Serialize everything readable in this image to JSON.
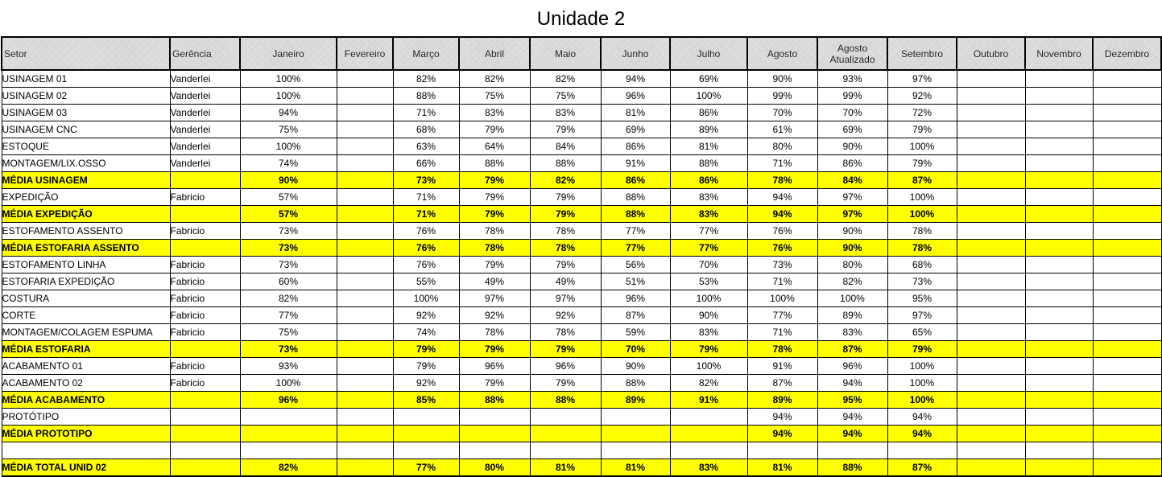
{
  "title": "Unidade 2",
  "headers": [
    "Setor",
    "Gerência",
    "Janeiro",
    "Fevereiro",
    "Março",
    "Abril",
    "Maio",
    "Junho",
    "Julho",
    "Agosto",
    "Agosto Atualizado",
    "Setembro",
    "Outubro",
    "Novembro",
    "Dezembro"
  ],
  "rows": [
    {
      "type": "row",
      "setor": "USINAGEM 01",
      "gerencia": "Vanderlei",
      "values": [
        "100%",
        "",
        "82%",
        "82%",
        "82%",
        "94%",
        "69%",
        "90%",
        "93%",
        "97%",
        "",
        "",
        ""
      ]
    },
    {
      "type": "row",
      "setor": "USINAGEM 02",
      "gerencia": "Vanderlei",
      "values": [
        "100%",
        "",
        "88%",
        "75%",
        "75%",
        "96%",
        "100%",
        "99%",
        "99%",
        "92%",
        "",
        "",
        ""
      ]
    },
    {
      "type": "row",
      "setor": "USINAGEM 03",
      "gerencia": "Vanderlei",
      "values": [
        "94%",
        "",
        "71%",
        "83%",
        "83%",
        "81%",
        "86%",
        "70%",
        "70%",
        "72%",
        "",
        "",
        ""
      ]
    },
    {
      "type": "row",
      "setor": "USINAGEM CNC",
      "gerencia": "Vanderlei",
      "values": [
        "75%",
        "",
        "68%",
        "79%",
        "79%",
        "69%",
        "89%",
        "61%",
        "69%",
        "79%",
        "",
        "",
        ""
      ]
    },
    {
      "type": "row",
      "setor": "ESTOQUE",
      "gerencia": "Vanderlei",
      "values": [
        "100%",
        "",
        "63%",
        "64%",
        "84%",
        "86%",
        "81%",
        "80%",
        "90%",
        "100%",
        "",
        "",
        ""
      ]
    },
    {
      "type": "row",
      "setor": "MONTAGEM/LIX.OSSO",
      "gerencia": "Vanderlei",
      "values": [
        "74%",
        "",
        "66%",
        "88%",
        "88%",
        "91%",
        "88%",
        "71%",
        "86%",
        "79%",
        "",
        "",
        ""
      ]
    },
    {
      "type": "avg",
      "setor": "MÉDIA USINAGEM",
      "gerencia": "",
      "values": [
        "90%",
        "",
        "73%",
        "79%",
        "82%",
        "86%",
        "86%",
        "78%",
        "84%",
        "87%",
        "",
        "",
        ""
      ]
    },
    {
      "type": "row",
      "setor": "EXPEDIÇÃO",
      "gerencia": "Fabricio",
      "values": [
        "57%",
        "",
        "71%",
        "79%",
        "79%",
        "88%",
        "83%",
        "94%",
        "97%",
        "100%",
        "",
        "",
        ""
      ]
    },
    {
      "type": "avg",
      "setor": "MÉDIA EXPEDIÇÃO",
      "gerencia": "",
      "values": [
        "57%",
        "",
        "71%",
        "79%",
        "79%",
        "88%",
        "83%",
        "94%",
        "97%",
        "100%",
        "",
        "",
        ""
      ]
    },
    {
      "type": "row",
      "setor": "ESTOFAMENTO ASSENTO",
      "gerencia": "Fabricio",
      "values": [
        "73%",
        "",
        "76%",
        "78%",
        "78%",
        "77%",
        "77%",
        "76%",
        "90%",
        "78%",
        "",
        "",
        ""
      ]
    },
    {
      "type": "avg",
      "setor": "MÉDIA ESTOFARIA ASSENTO",
      "gerencia": "",
      "values": [
        "73%",
        "",
        "76%",
        "78%",
        "78%",
        "77%",
        "77%",
        "76%",
        "90%",
        "78%",
        "",
        "",
        ""
      ]
    },
    {
      "type": "row",
      "setor": "ESTOFAMENTO LINHA",
      "gerencia": "Fabricio",
      "values": [
        "73%",
        "",
        "76%",
        "79%",
        "79%",
        "56%",
        "70%",
        "73%",
        "80%",
        "68%",
        "",
        "",
        ""
      ]
    },
    {
      "type": "row",
      "setor": "ESTOFARIA EXPEDIÇÃO",
      "gerencia": "Fabricio",
      "values": [
        "60%",
        "",
        "55%",
        "49%",
        "49%",
        "51%",
        "53%",
        "71%",
        "82%",
        "73%",
        "",
        "",
        ""
      ]
    },
    {
      "type": "row",
      "setor": "COSTURA",
      "gerencia": "Fabricio",
      "values": [
        "82%",
        "",
        "100%",
        "97%",
        "97%",
        "96%",
        "100%",
        "100%",
        "100%",
        "95%",
        "",
        "",
        ""
      ]
    },
    {
      "type": "row",
      "setor": "CORTE",
      "gerencia": "Fabricio",
      "values": [
        "77%",
        "",
        "92%",
        "92%",
        "92%",
        "87%",
        "90%",
        "77%",
        "89%",
        "97%",
        "",
        "",
        ""
      ]
    },
    {
      "type": "row",
      "setor": "MONTAGEM/COLAGEM ESPUMA",
      "gerencia": "Fabricio",
      "values": [
        "75%",
        "",
        "74%",
        "78%",
        "78%",
        "59%",
        "83%",
        "71%",
        "83%",
        "65%",
        "",
        "",
        ""
      ]
    },
    {
      "type": "avg",
      "setor": "MÉDIA ESTOFARIA",
      "gerencia": "",
      "values": [
        "73%",
        "",
        "79%",
        "79%",
        "79%",
        "70%",
        "79%",
        "78%",
        "87%",
        "79%",
        "",
        "",
        ""
      ]
    },
    {
      "type": "row",
      "setor": "ACABAMENTO 01",
      "gerencia": "Fabricio",
      "values": [
        "93%",
        "",
        "79%",
        "96%",
        "96%",
        "90%",
        "100%",
        "91%",
        "96%",
        "100%",
        "",
        "",
        ""
      ]
    },
    {
      "type": "row",
      "setor": "ACABAMENTO 02",
      "gerencia": "Fabricio",
      "values": [
        "100%",
        "",
        "92%",
        "79%",
        "79%",
        "88%",
        "82%",
        "87%",
        "94%",
        "100%",
        "",
        "",
        ""
      ]
    },
    {
      "type": "avg",
      "setor": "MÉDIA ACABAMENTO",
      "gerencia": "",
      "values": [
        "96%",
        "",
        "85%",
        "88%",
        "88%",
        "89%",
        "91%",
        "89%",
        "95%",
        "100%",
        "",
        "",
        ""
      ]
    },
    {
      "type": "row",
      "setor": "PROTÓTIPO",
      "gerencia": "",
      "values": [
        "",
        "",
        "",
        "",
        "",
        "",
        "",
        "94%",
        "94%",
        "94%",
        "",
        "",
        ""
      ]
    },
    {
      "type": "avg",
      "setor": "MÉDIA PROTOTIPO",
      "gerencia": "",
      "values": [
        "",
        "",
        "",
        "",
        "",
        "",
        "",
        "94%",
        "94%",
        "94%",
        "",
        "",
        ""
      ]
    },
    {
      "type": "blank",
      "setor": "",
      "gerencia": "",
      "values": [
        "",
        "",
        "",
        "",
        "",
        "",
        "",
        "",
        "",
        "",
        "",
        "",
        ""
      ]
    },
    {
      "type": "avg total",
      "setor": "MÉDIA TOTAL  UNID 02",
      "gerencia": "",
      "values": [
        "82%",
        "",
        "77%",
        "80%",
        "81%",
        "81%",
        "83%",
        "81%",
        "88%",
        "87%",
        "",
        "",
        ""
      ]
    }
  ]
}
